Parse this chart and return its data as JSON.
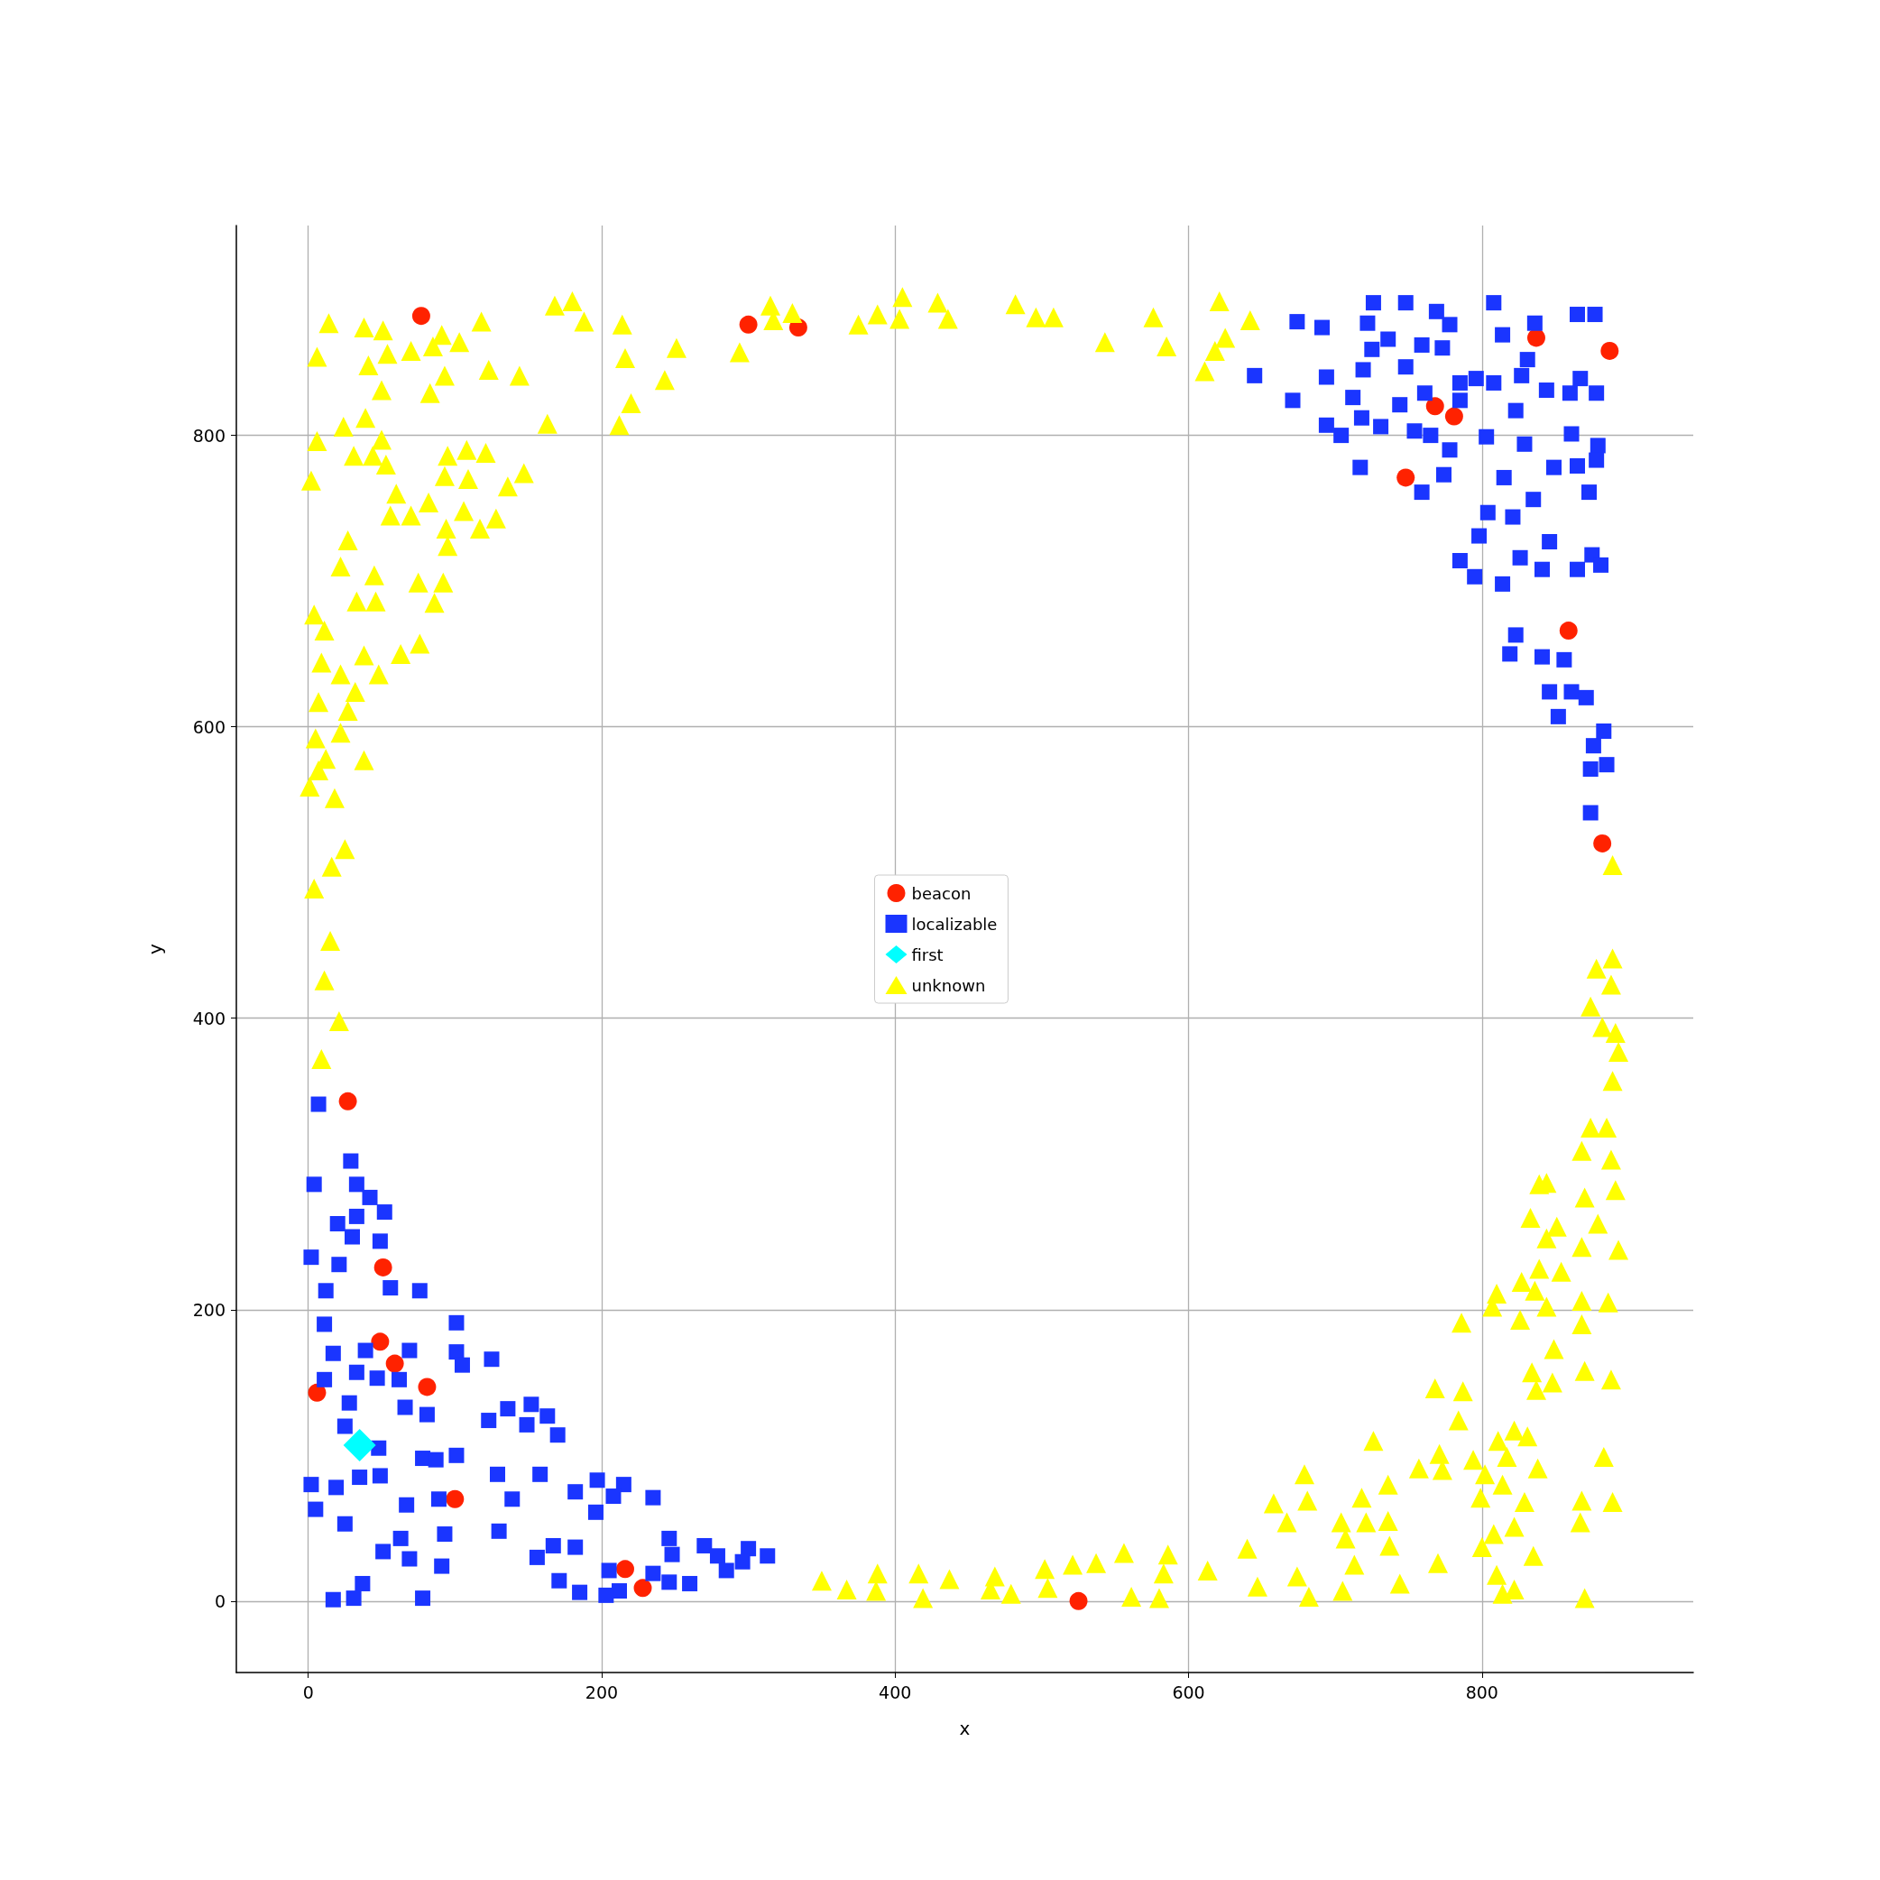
{
  "chart_data": {
    "type": "scatter",
    "xlabel": "x",
    "ylabel": "y",
    "xlim": [
      -49,
      944
    ],
    "ylim": [
      -49,
      944
    ],
    "xticks": [
      0,
      200,
      400,
      600,
      800
    ],
    "yticks": [
      0,
      200,
      400,
      600,
      800
    ],
    "grid": true,
    "legend": "center",
    "series": [
      {
        "name": "beacon",
        "color": "#ff2200",
        "marker": "circle",
        "x": [
          77,
          300,
          334,
          837,
          887,
          768,
          781,
          748,
          859,
          882,
          27,
          51,
          49,
          59,
          81,
          6,
          100,
          216,
          228,
          525
        ],
        "values": [
          882,
          876,
          874,
          867,
          858,
          820,
          813,
          771,
          666,
          520,
          343,
          229,
          178,
          163,
          147,
          143,
          70,
          22,
          9,
          0
        ]
      },
      {
        "name": "localizable",
        "color": "#1a35ff",
        "marker": "square",
        "x": [
          726,
          748,
          808,
          769,
          674,
          691,
          722,
          778,
          836,
          865,
          877,
          814,
          725,
          736,
          759,
          773,
          831,
          645,
          694,
          748,
          719,
          785,
          796,
          808,
          827,
          867,
          844,
          860,
          878,
          671,
          712,
          744,
          761,
          785,
          823,
          694,
          704,
          718,
          731,
          754,
          765,
          803,
          861,
          879,
          829,
          778,
          717,
          774,
          815,
          849,
          865,
          878,
          759,
          835,
          873,
          804,
          821,
          846,
          798,
          826,
          785,
          795,
          814,
          841,
          865,
          875,
          881,
          823,
          819,
          841,
          856,
          846,
          861,
          871,
          852,
          883,
          876,
          874,
          885,
          874,
          7,
          29,
          4,
          33,
          42,
          52,
          33,
          20,
          30,
          49,
          2,
          21,
          12,
          56,
          76,
          11,
          101,
          17,
          39,
          69,
          101,
          105,
          125,
          11,
          33,
          47,
          62,
          28,
          66,
          81,
          123,
          136,
          152,
          163,
          149,
          170,
          25,
          48,
          78,
          87,
          101,
          129,
          158,
          35,
          49,
          2,
          19,
          182,
          197,
          215,
          208,
          235,
          5,
          67,
          89,
          139,
          196,
          25,
          130,
          93,
          63,
          246,
          167,
          182,
          270,
          279,
          300,
          313,
          51,
          69,
          156,
          248,
          91,
          205,
          235,
          285,
          296,
          37,
          171,
          246,
          260,
          185,
          212,
          203,
          17,
          31,
          78
        ],
        "values": [
          891,
          891,
          891,
          885,
          878,
          874,
          877,
          876,
          877,
          883,
          883,
          869,
          859,
          866,
          862,
          860,
          852,
          841,
          840,
          847,
          845,
          836,
          839,
          836,
          841,
          839,
          831,
          829,
          829,
          824,
          826,
          821,
          829,
          824,
          817,
          807,
          800,
          812,
          806,
          803,
          800,
          799,
          801,
          793,
          794,
          790,
          778,
          773,
          771,
          778,
          779,
          783,
          761,
          756,
          761,
          747,
          744,
          727,
          731,
          716,
          714,
          703,
          698,
          708,
          708,
          718,
          711,
          663,
          650,
          648,
          646,
          624,
          624,
          620,
          607,
          597,
          587,
          571,
          574,
          541,
          341,
          302,
          286,
          286,
          277,
          267,
          264,
          259,
          250,
          247,
          236,
          231,
          213,
          215,
          213,
          190,
          191,
          170,
          172,
          172,
          171,
          162,
          166,
          152,
          157,
          153,
          152,
          136,
          133,
          128,
          124,
          132,
          135,
          127,
          121,
          114,
          120,
          105,
          98,
          97,
          100,
          87,
          87,
          85,
          86,
          80,
          78,
          75,
          83,
          80,
          72,
          71,
          63,
          66,
          70,
          70,
          61,
          53,
          48,
          46,
          43,
          43,
          38,
          37,
          38,
          31,
          36,
          31,
          34,
          29,
          30,
          32,
          24,
          21,
          19,
          21,
          27,
          12,
          14,
          13,
          12,
          6,
          7,
          4,
          1,
          2,
          2
        ]
      },
      {
        "name": "first",
        "color": "#00ffff",
        "marker": "diamond",
        "x": [
          35
        ],
        "values": [
          107
        ]
      },
      {
        "name": "unknown",
        "color": "#ffff00",
        "marker": "triangle",
        "x": [
          14,
          38,
          51,
          6,
          54,
          41,
          70,
          85,
          91,
          103,
          118,
          123,
          144,
          50,
          83,
          93,
          24,
          39,
          50,
          6,
          31,
          44,
          53,
          95,
          108,
          121,
          2,
          60,
          93,
          109,
          136,
          147,
          56,
          70,
          82,
          106,
          128,
          117,
          94,
          95,
          27,
          22,
          45,
          33,
          46,
          75,
          92,
          86,
          4,
          11,
          76,
          63,
          38,
          9,
          22,
          48,
          32,
          7,
          27,
          22,
          5,
          12,
          38,
          1,
          7,
          18,
          25,
          16,
          4,
          15,
          11,
          21,
          9,
          168,
          180,
          188,
          163,
          214,
          216,
          220,
          212,
          243,
          251,
          294,
          315,
          317,
          330,
          375,
          388,
          403,
          405,
          429,
          436,
          482,
          496,
          508,
          543,
          576,
          585,
          611,
          618,
          621,
          625,
          642,
          889,
          889,
          878,
          888,
          874,
          882,
          891,
          893,
          889,
          874,
          885,
          868,
          888,
          839,
          844,
          870,
          891,
          833,
          851,
          879,
          844,
          868,
          893,
          839,
          854,
          827,
          810,
          836,
          807,
          844,
          868,
          886,
          826,
          868,
          786,
          849,
          834,
          870,
          888,
          837,
          848,
          768,
          787,
          784,
          726,
          811,
          822,
          831,
          817,
          794,
          771,
          883,
          838,
          757,
          773,
          802,
          679,
          736,
          814,
          658,
          681,
          718,
          799,
          829,
          868,
          889,
          667,
          704,
          721,
          736,
          822,
          867,
          707,
          808,
          640,
          737,
          835,
          800,
          713,
          770,
          613,
          674,
          810,
          647,
          744,
          705,
          814,
          822,
          682,
          870,
          350,
          367,
          388,
          387,
          416,
          419,
          437,
          468,
          465,
          479,
          502,
          504,
          521,
          537,
          556,
          561,
          586,
          583,
          580
        ],
        "values": [
          877,
          874,
          872,
          854,
          856,
          848,
          858,
          861,
          869,
          864,
          878,
          845,
          841,
          831,
          829,
          841,
          806,
          812,
          797,
          796,
          786,
          786,
          780,
          786,
          790,
          788,
          769,
          760,
          772,
          770,
          765,
          774,
          745,
          745,
          754,
          748,
          743,
          736,
          736,
          724,
          728,
          710,
          704,
          686,
          686,
          699,
          699,
          685,
          677,
          666,
          657,
          650,
          649,
          644,
          636,
          636,
          624,
          617,
          611,
          596,
          592,
          578,
          577,
          559,
          570,
          551,
          516,
          504,
          489,
          453,
          426,
          398,
          372,
          889,
          892,
          878,
          808,
          876,
          853,
          822,
          807,
          838,
          860,
          857,
          889,
          879,
          884,
          876,
          883,
          880,
          895,
          891,
          880,
          890,
          881,
          881,
          864,
          881,
          861,
          844,
          858,
          892,
          867,
          879,
          505,
          441,
          434,
          423,
          408,
          394,
          390,
          377,
          357,
          325,
          325,
          309,
          303,
          286,
          287,
          277,
          282,
          263,
          257,
          259,
          249,
          243,
          241,
          228,
          226,
          219,
          211,
          213,
          202,
          202,
          206,
          205,
          193,
          190,
          191,
          173,
          157,
          158,
          152,
          145,
          150,
          146,
          144,
          124,
          110,
          110,
          117,
          113,
          99,
          97,
          101,
          99,
          91,
          91,
          90,
          87,
          87,
          80,
          80,
          67,
          69,
          71,
          71,
          68,
          69,
          68,
          54,
          54,
          54,
          55,
          51,
          54,
          43,
          46,
          36,
          38,
          31,
          37,
          25,
          26,
          21,
          17,
          18,
          10,
          12,
          7,
          5,
          8,
          3,
          2,
          14,
          8,
          19,
          7,
          19,
          2,
          15,
          17,
          8,
          5,
          22,
          9,
          25,
          26,
          33,
          3,
          32,
          19,
          2
        ]
      }
    ]
  }
}
